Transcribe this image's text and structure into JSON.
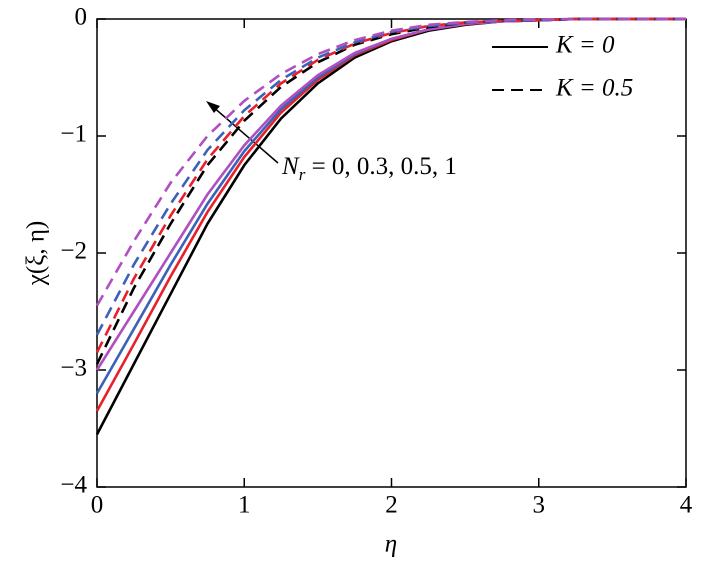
{
  "chart_data": {
    "type": "line",
    "xlabel": "η",
    "ylabel": "χ(ξ, η)",
    "x": [
      0,
      0.25,
      0.5,
      0.75,
      1,
      1.25,
      1.5,
      1.75,
      2,
      2.25,
      2.5,
      2.75,
      3,
      3.25,
      3.5,
      3.75,
      4
    ],
    "xlim": [
      0,
      4
    ],
    "ylim": [
      -4,
      0
    ],
    "xticks": [
      0,
      1,
      2,
      3,
      4
    ],
    "yticks": [
      {
        "value": -4,
        "label": "−4"
      },
      {
        "value": -3,
        "label": "−3"
      },
      {
        "value": -2,
        "label": "−2"
      },
      {
        "value": -1,
        "label": "−1"
      },
      0
    ],
    "series": [
      {
        "color": "#000000",
        "dash": "solid",
        "values": [
          -3.55,
          -2.95,
          -2.35,
          -1.75,
          -1.25,
          -0.85,
          -0.55,
          -0.33,
          -0.19,
          -0.1,
          -0.05,
          -0.02,
          -0.01,
          0,
          0,
          0,
          0
        ]
      },
      {
        "color": "#e8202a",
        "dash": "solid",
        "values": [
          -3.35,
          -2.78,
          -2.2,
          -1.65,
          -1.18,
          -0.8,
          -0.52,
          -0.31,
          -0.18,
          -0.09,
          -0.045,
          -0.02,
          -0.01,
          0,
          0,
          0,
          0
        ]
      },
      {
        "color": "#3a62b8",
        "dash": "solid",
        "values": [
          -3.2,
          -2.65,
          -2.1,
          -1.58,
          -1.13,
          -0.77,
          -0.5,
          -0.3,
          -0.17,
          -0.09,
          -0.04,
          -0.02,
          -0.01,
          0,
          0,
          0,
          0
        ]
      },
      {
        "color": "#b050c0",
        "dash": "solid",
        "values": [
          -3.0,
          -2.5,
          -2.0,
          -1.5,
          -1.08,
          -0.74,
          -0.48,
          -0.29,
          -0.17,
          -0.09,
          -0.04,
          -0.02,
          -0.01,
          0,
          0,
          0,
          0
        ]
      },
      {
        "color": "#000000",
        "dash": "dashed",
        "values": [
          -2.95,
          -2.3,
          -1.75,
          -1.25,
          -0.87,
          -0.58,
          -0.37,
          -0.22,
          -0.13,
          -0.07,
          -0.03,
          -0.015,
          -0.01,
          0,
          0,
          0,
          0
        ]
      },
      {
        "color": "#e8202a",
        "dash": "dashed",
        "values": [
          -2.85,
          -2.22,
          -1.68,
          -1.2,
          -0.83,
          -0.55,
          -0.35,
          -0.21,
          -0.12,
          -0.06,
          -0.03,
          -0.015,
          -0.01,
          0,
          0,
          0,
          0
        ]
      },
      {
        "color": "#3a62b8",
        "dash": "dashed",
        "values": [
          -2.7,
          -2.1,
          -1.58,
          -1.12,
          -0.78,
          -0.52,
          -0.33,
          -0.2,
          -0.11,
          -0.06,
          -0.03,
          -0.015,
          -0.01,
          0,
          0,
          0,
          0
        ]
      },
      {
        "color": "#b050c0",
        "dash": "dashed",
        "values": [
          -2.45,
          -1.9,
          -1.4,
          -1.0,
          -0.7,
          -0.47,
          -0.3,
          -0.18,
          -0.1,
          -0.05,
          -0.025,
          -0.01,
          -0.005,
          0,
          0,
          0,
          0
        ]
      }
    ],
    "legend": [
      {
        "label": "K = 0",
        "dash": "solid"
      },
      {
        "label": "K = 0.5",
        "dash": "dashed"
      }
    ],
    "legend_position": "upper right",
    "annotation": {
      "symbol": "N",
      "subscript": "r",
      "text": " = 0, 0.3, 0.5, 1"
    }
  }
}
